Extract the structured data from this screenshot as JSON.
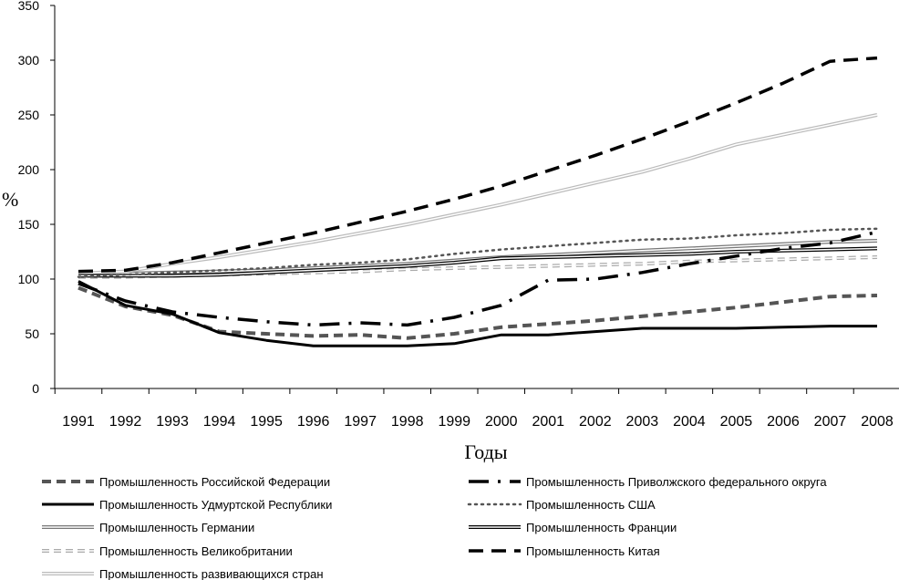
{
  "chart_data": {
    "type": "line",
    "title": "",
    "xlabel": "Годы",
    "ylabel": "%",
    "ylim": [
      0,
      350
    ],
    "yticks": [
      0,
      50,
      100,
      150,
      200,
      250,
      300,
      350
    ],
    "x": [
      "1991",
      "1992",
      "1993",
      "1994",
      "1995",
      "1996",
      "1997",
      "1998",
      "1999",
      "2000",
      "2001",
      "2002",
      "2003",
      "2004",
      "2005",
      "2006",
      "2007",
      "2008"
    ],
    "grid": false,
    "legend": "bottom",
    "series": [
      {
        "name": "Промышленность Российской Федерации",
        "style": "dash-bold",
        "color": "#555555",
        "values": [
          92,
          75,
          67,
          52,
          50,
          48,
          49,
          46,
          50,
          56,
          59,
          62,
          66,
          70,
          74,
          79,
          84,
          85
        ]
      },
      {
        "name": "Промышленность Приволжского федерального округа",
        "style": "dashdot-bold",
        "color": "#000000",
        "values": [
          96,
          80,
          70,
          65,
          61,
          58,
          60,
          58,
          65,
          76,
          99,
          100,
          106,
          114,
          121,
          128,
          133,
          143
        ]
      },
      {
        "name": "Промышленность Удмуртской Республики",
        "style": "solid-bold",
        "color": "#000000",
        "values": [
          98,
          76,
          68,
          51,
          44,
          39,
          39,
          39,
          41,
          49,
          49,
          52,
          55,
          55,
          55,
          56,
          57,
          57
        ]
      },
      {
        "name": "Промышленность США",
        "style": "dotted",
        "color": "#555555",
        "values": [
          102,
          104,
          106,
          108,
          110,
          113,
          115,
          118,
          123,
          127,
          130,
          133,
          136,
          137,
          140,
          142,
          145,
          146
        ]
      },
      {
        "name": "Промышленность Германии",
        "style": "double-gray",
        "color": "#777777",
        "values": [
          105,
          105,
          106,
          107,
          108,
          110,
          112,
          114,
          117,
          120,
          122,
          124,
          126,
          128,
          130,
          132,
          134,
          135
        ]
      },
      {
        "name": "Промышленность Франции",
        "style": "double-black",
        "color": "#000000",
        "values": [
          103,
          103,
          103,
          104,
          106,
          108,
          110,
          112,
          115,
          119,
          120,
          121,
          122,
          123,
          125,
          126,
          127,
          128
        ]
      },
      {
        "name": "Промышленность Великобритании",
        "style": "dash-double",
        "color": "#aaaaaa",
        "values": [
          102,
          102,
          103,
          104,
          105,
          106,
          107,
          109,
          110,
          111,
          112,
          113,
          114,
          116,
          117,
          118,
          119,
          120
        ]
      },
      {
        "name": "Промышленность Китая",
        "style": "dash-heavy",
        "color": "#000000",
        "values": [
          107,
          108,
          115,
          124,
          133,
          142,
          152,
          162,
          173,
          185,
          199,
          213,
          228,
          244,
          261,
          279,
          299,
          302
        ]
      },
      {
        "name": "Промышленность развивающихся стран",
        "style": "double-light",
        "color": "#bbbbbb",
        "values": [
          105,
          107,
          114,
          120,
          127,
          134,
          142,
          150,
          159,
          168,
          178,
          188,
          198,
          210,
          223,
          232,
          241,
          250
        ]
      }
    ]
  }
}
